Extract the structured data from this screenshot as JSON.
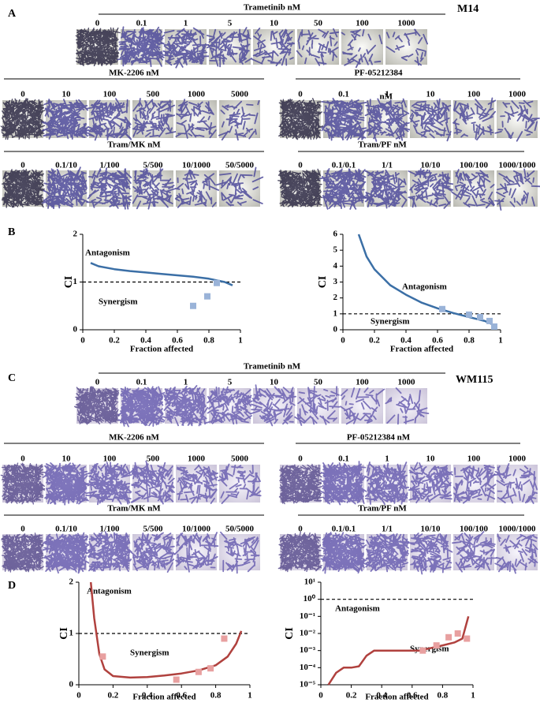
{
  "figure": {
    "blocks": [
      {
        "panel": "A",
        "cell_line": "M14",
        "groups": [
          {
            "title": "Trametinib nM",
            "labels": [
              "0",
              "0.1",
              "1",
              "5",
              "10",
              "50",
              "100",
              "1000"
            ]
          },
          {
            "title": "MK-2206 nM",
            "labels": [
              "0",
              "10",
              "100",
              "500",
              "1000",
              "5000"
            ]
          },
          {
            "title": "PF-05212384",
            "note": "nM",
            "labels": [
              "0",
              "0.1",
              "1",
              "10",
              "100",
              "1000"
            ]
          },
          {
            "title": "Tram/MK nM",
            "labels": [
              "0",
              "0.1/10",
              "1/100",
              "5/500",
              "10/1000",
              "50/5000"
            ]
          },
          {
            "title": "Tram/PF nM",
            "labels": [
              "0",
              "0.1/0.1",
              "1/1",
              "10/10",
              "100/100",
              "1000/1000"
            ]
          }
        ]
      },
      {
        "panel": "C",
        "cell_line": "WM115",
        "groups": [
          {
            "title": "Trametinib nM",
            "labels": [
              "0",
              "0.1",
              "1",
              "5",
              "10",
              "50",
              "100",
              "1000"
            ]
          },
          {
            "title": "MK-2206 nM",
            "labels": [
              "0",
              "10",
              "100",
              "500",
              "1000",
              "5000"
            ]
          },
          {
            "title": "PF-05212384 nM",
            "labels": [
              "0",
              "0.1",
              "1",
              "10",
              "100",
              "1000"
            ]
          },
          {
            "title": "Tram/MK nM",
            "labels": [
              "0",
              "0.1/10",
              "1/100",
              "5/500",
              "10/1000",
              "50/5000"
            ]
          },
          {
            "title": "Tram/PF nM",
            "labels": [
              "0",
              "0.1/0.1",
              "1/1",
              "10/10",
              "100/100",
              "1000/1000"
            ]
          }
        ]
      }
    ],
    "chart_panels": [
      "B",
      "D"
    ]
  },
  "chart_data": [
    {
      "type": "scatter",
      "ylabel": "CI",
      "xlabel": "Fraction affected",
      "annotations": [
        "Antagonism",
        "Synergism"
      ],
      "xlim": [
        0,
        1
      ],
      "xticks": [
        0,
        0.2,
        0.4,
        0.6,
        0.8,
        1
      ],
      "ylim": [
        0,
        2
      ],
      "yticks": [
        0,
        1,
        2
      ],
      "reference_line": 1,
      "series": [
        {
          "mode": "line",
          "color": "#3b6fa6",
          "x": [
            0.05,
            0.1,
            0.2,
            0.3,
            0.4,
            0.5,
            0.6,
            0.7,
            0.8,
            0.9,
            0.95
          ],
          "values": [
            1.4,
            1.33,
            1.27,
            1.23,
            1.2,
            1.17,
            1.14,
            1.11,
            1.07,
            1.0,
            0.93
          ]
        },
        {
          "mode": "markers",
          "color": "#9ab3d8",
          "x": [
            0.7,
            0.79,
            0.85
          ],
          "values": [
            0.5,
            0.7,
            0.98
          ]
        }
      ]
    },
    {
      "type": "scatter",
      "ylabel": "CI",
      "xlabel": "Fraction affected",
      "annotations": [
        "Antagonism",
        "Synergism"
      ],
      "xlim": [
        0,
        1
      ],
      "xticks": [
        0,
        0.2,
        0.4,
        0.6,
        0.8,
        1
      ],
      "ylim": [
        0,
        6
      ],
      "yticks": [
        0,
        1,
        2,
        3,
        4,
        5,
        6
      ],
      "reference_line": 1,
      "series": [
        {
          "mode": "line",
          "color": "#3b6fa6",
          "x": [
            0.1,
            0.15,
            0.2,
            0.3,
            0.4,
            0.5,
            0.6,
            0.7,
            0.8,
            0.9,
            0.97
          ],
          "values": [
            6,
            4.6,
            3.8,
            2.8,
            2.2,
            1.7,
            1.35,
            1.05,
            0.8,
            0.55,
            0.25
          ]
        },
        {
          "mode": "markers",
          "color": "#9ab3d8",
          "x": [
            0.63,
            0.8,
            0.87,
            0.93,
            0.96
          ],
          "values": [
            1.3,
            0.95,
            0.8,
            0.55,
            0.2
          ]
        }
      ]
    },
    {
      "type": "scatter",
      "ylabel": "CI",
      "xlabel": "Fraction affected",
      "annotations": [
        "Antagonism",
        "Synergism"
      ],
      "xlim": [
        0,
        1
      ],
      "xticks": [
        0,
        0.2,
        0.4,
        0.6,
        0.8,
        1
      ],
      "ylim": [
        0,
        2
      ],
      "yticks": [
        0,
        1,
        2
      ],
      "reference_line": 1,
      "series": [
        {
          "mode": "line",
          "color": "#b0413e",
          "x": [
            0.07,
            0.09,
            0.12,
            0.15,
            0.2,
            0.3,
            0.4,
            0.5,
            0.6,
            0.7,
            0.8,
            0.87,
            0.92,
            0.95
          ],
          "values": [
            2,
            1.3,
            0.6,
            0.3,
            0.17,
            0.14,
            0.15,
            0.18,
            0.22,
            0.28,
            0.38,
            0.55,
            0.8,
            1.05
          ]
        },
        {
          "mode": "markers",
          "color": "#e8a0a0",
          "x": [
            0.14,
            0.57,
            0.7,
            0.77,
            0.85
          ],
          "values": [
            0.55,
            0.1,
            0.25,
            0.32,
            0.9
          ]
        }
      ]
    },
    {
      "type": "scatter",
      "ylabel": "CI",
      "xlabel": "Fraction affected",
      "annotations": [
        "Antagonism",
        "Synergism"
      ],
      "xlim": [
        0,
        1
      ],
      "xticks": [
        0,
        0.2,
        0.4,
        0.6,
        0.8,
        1
      ],
      "log_y": true,
      "ylim": [
        1e-05,
        10
      ],
      "yticks": [
        {
          "value": 10,
          "label": "10¹"
        },
        {
          "value": 1,
          "label": "10⁰"
        },
        {
          "value": 0.1,
          "label": "10⁻¹"
        },
        {
          "value": 0.01,
          "label": "10⁻²"
        },
        {
          "value": 0.001,
          "label": "10⁻³"
        },
        {
          "value": 0.0001,
          "label": "10⁻⁴"
        },
        {
          "value": 1e-05,
          "label": "10⁻⁵"
        }
      ],
      "reference_line": 1,
      "series": [
        {
          "mode": "line",
          "color": "#b0413e",
          "x": [
            0.05,
            0.1,
            0.15,
            0.2,
            0.25,
            0.3,
            0.35,
            0.5,
            0.65,
            0.8,
            0.88,
            0.93,
            0.97
          ],
          "values": [
            1e-05,
            5e-05,
            0.0001,
            0.0001,
            0.00012,
            0.0005,
            0.001,
            0.001,
            0.001,
            0.002,
            0.003,
            0.005,
            0.1
          ]
        },
        {
          "mode": "markers",
          "color": "#e8a0a0",
          "x": [
            0.67,
            0.76,
            0.84,
            0.9,
            0.96
          ],
          "values": [
            0.001,
            0.002,
            0.006,
            0.01,
            0.005
          ]
        }
      ]
    }
  ]
}
